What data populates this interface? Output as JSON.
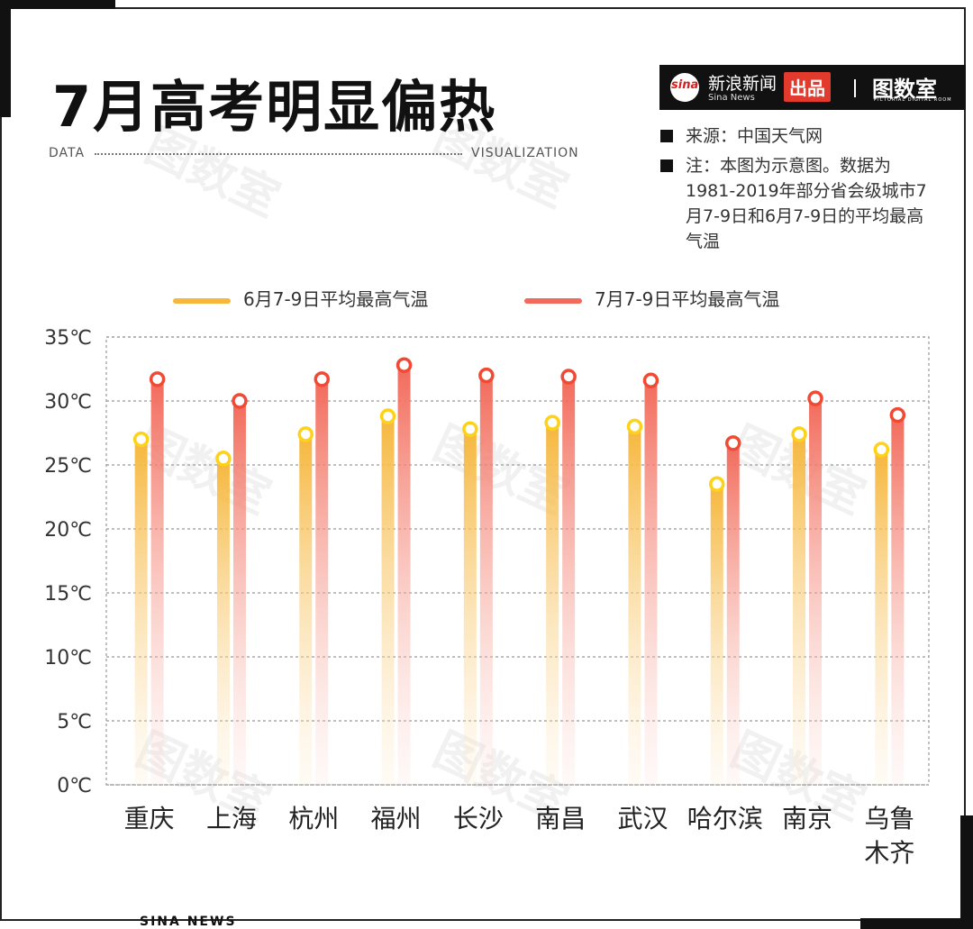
{
  "title": "7月高考明显偏热",
  "header": {
    "left_label": "DATA",
    "right_label": "VISUALIZATION"
  },
  "brand": {
    "sina_mark": "sina",
    "name_cn": "新浪新闻",
    "name_en": "Sina News",
    "badge": "出品",
    "logo": "图数室",
    "logo_en": "PICTORIAL DIGITAL ROOM"
  },
  "notes": {
    "source": "来源：中国天气网",
    "note": "注：本图为示意图。数据为1981-2019年部分省会级城市7月7-9日和6月7-9日的平均最高气温"
  },
  "footer": "SINA NEWS",
  "colors": {
    "series_june": "#f6b73c",
    "series_july": "#f26a5a"
  },
  "chart_data": {
    "type": "bar",
    "title": "7月高考明显偏热",
    "categories": [
      "重庆",
      "上海",
      "杭州",
      "福州",
      "长沙",
      "南昌",
      "武汉",
      "哈尔滨",
      "南京",
      "乌鲁木齐"
    ],
    "category_lines": [
      [
        "重庆"
      ],
      [
        "上海"
      ],
      [
        "杭州"
      ],
      [
        "福州"
      ],
      [
        "长沙"
      ],
      [
        "南昌"
      ],
      [
        "武汉"
      ],
      [
        "哈尔滨"
      ],
      [
        "南京"
      ],
      [
        "乌鲁",
        "木齐"
      ]
    ],
    "series": [
      {
        "name": "6月7-9日平均最高气温",
        "values": [
          27.0,
          25.5,
          27.4,
          28.8,
          27.8,
          28.3,
          28.0,
          23.5,
          27.4,
          26.2
        ]
      },
      {
        "name": "7月7-9日平均最高气温",
        "values": [
          31.7,
          30.0,
          31.7,
          32.8,
          32.0,
          31.9,
          31.6,
          26.7,
          30.2,
          28.9
        ]
      }
    ],
    "ylim": [
      0,
      35
    ],
    "yticks": [
      "0℃",
      "5℃",
      "10℃",
      "15℃",
      "20℃",
      "25℃",
      "30℃",
      "35℃"
    ],
    "grid": true,
    "legend_position": "top"
  }
}
